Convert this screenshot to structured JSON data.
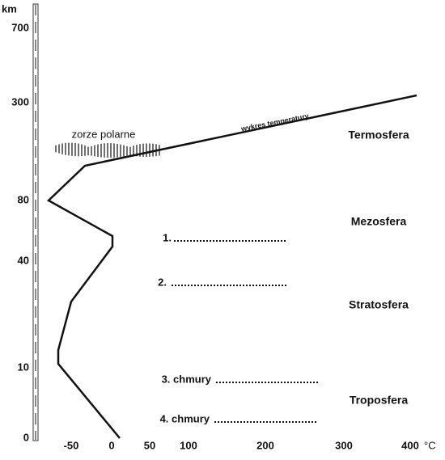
{
  "axes": {
    "y_unit": "km",
    "y_labels": [
      700,
      300,
      80,
      40,
      10,
      0
    ],
    "x_labels": [
      -50,
      0,
      50,
      100,
      200,
      300,
      400
    ],
    "x_unit": "°C"
  },
  "annotations": {
    "aurora": "zorze polarne",
    "curve": "wykres temperatury"
  },
  "layers": [
    "Termosfera",
    "Mezosfera",
    "Stratosfera",
    "Troposfera"
  ],
  "blanks": [
    "1.",
    "2.",
    "3. chmury",
    "4. chmury"
  ]
}
